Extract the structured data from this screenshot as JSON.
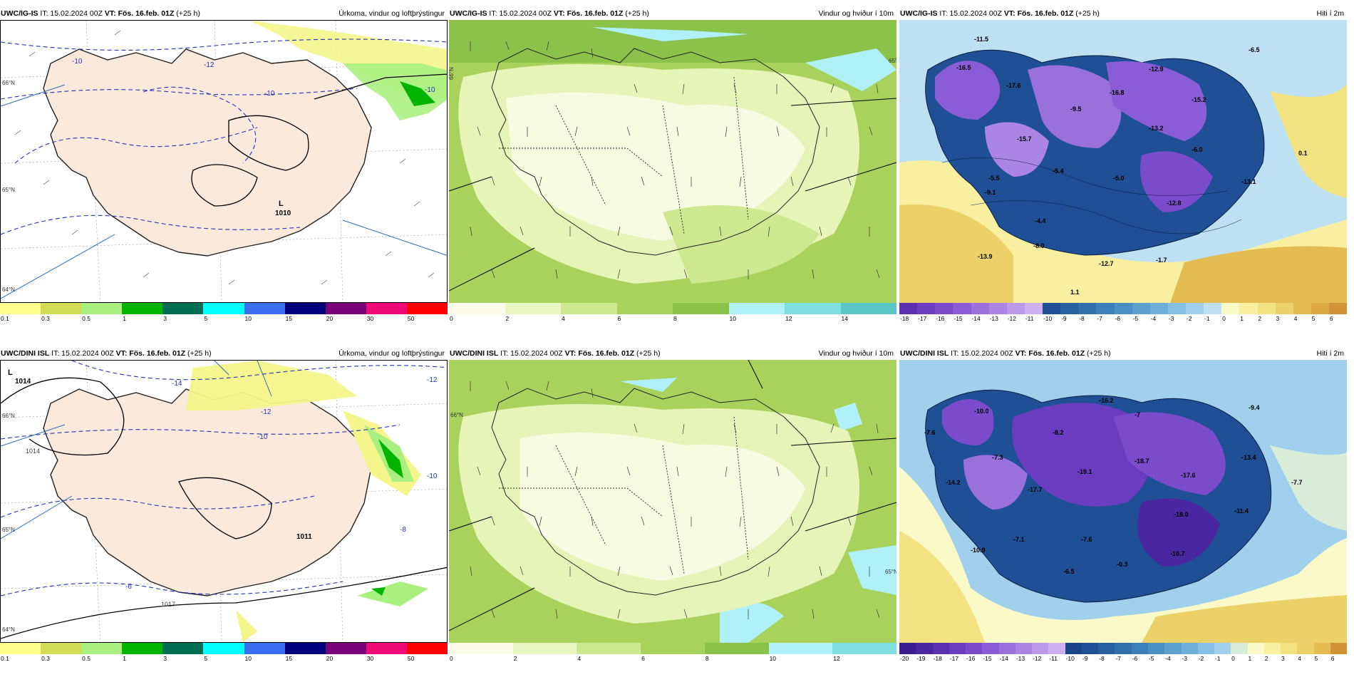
{
  "panels": [
    {
      "id": "top-precip",
      "model": "UWC/IG-IS",
      "it": "IT: 15.02.2024 00Z",
      "vt": "VT: Fös. 16.feb. 01Z",
      "lead": "(+25 h)",
      "product": "Úrkoma, vindur og loftþrýstingur",
      "ticks": [
        "0.1",
        "0.3",
        "0.5",
        "1",
        "3",
        "5",
        "10",
        "15",
        "20",
        "30",
        "50"
      ],
      "colors": [
        "#ffff8c",
        "#d2dd55",
        "#aaf080",
        "#00b400",
        "#006e50",
        "#00ffff",
        "#3c6ef0",
        "#00007d",
        "#780078",
        "#f00a78",
        "#ff0000"
      ],
      "labels": [
        {
          "text": "-10",
          "c": "#2633b5"
        },
        {
          "text": "-12",
          "c": "#2633b5"
        },
        {
          "text": "-10",
          "c": "#2633b5"
        },
        {
          "text": "-10",
          "c": "#2633b5"
        },
        {
          "text": "1010",
          "c": "#000"
        },
        {
          "text": "L",
          "c": "#000"
        }
      ],
      "lat_labels": [
        "66°N",
        "65°N",
        "64°N"
      ]
    },
    {
      "id": "top-wind",
      "model": "UWC/IG-IS",
      "it": "IT: 15.02.2024 00Z",
      "vt": "VT: Fös. 16.feb. 01Z",
      "lead": "(+25 h)",
      "product": "Vindur og hviður í 10m",
      "ticks": [
        "0",
        "2",
        "4",
        "6",
        "8",
        "10",
        "12",
        "14"
      ],
      "colors": [
        "#fbfde8",
        "#eaf6c2",
        "#cde990",
        "#a8d25c",
        "#8bc34a",
        "#b0f0f8",
        "#7fdee0",
        "#5cc7c7"
      ],
      "labels": [],
      "lat_labels": [
        "66°N",
        "65°N"
      ]
    },
    {
      "id": "top-temp",
      "model": "UWC/IG-IS",
      "it": "IT: 15.02.2024 00Z",
      "vt": "VT: Fös. 16.feb. 01Z",
      "lead": "(+25 h)",
      "product": "Hiti í 2m",
      "ticks": [
        "-18",
        "-17",
        "-16",
        "-15",
        "-14",
        "-13",
        "-12",
        "-11",
        "-10",
        "-9",
        "-8",
        "-7",
        "-6",
        "-5",
        "-4",
        "-3",
        "-2",
        "-1",
        "0",
        "1",
        "2",
        "3",
        "4",
        "5",
        "6"
      ],
      "colors": [
        "#5a2fb0",
        "#6a3cc0",
        "#7a4ccc",
        "#8a5cd6",
        "#9a70dd",
        "#ab85e4",
        "#bc9aea",
        "#cdb0f0",
        "#1f4f94",
        "#27609f",
        "#3070ab",
        "#3b80b8",
        "#4a90c4",
        "#5ca0cf",
        "#6fb0da",
        "#86c0e4",
        "#a0d0ec",
        "#bde0f2",
        "#fafac8",
        "#f8f0a0",
        "#f2e282",
        "#ecd068",
        "#e4bc52",
        "#dca842",
        "#d49236"
      ],
      "labels": [
        {
          "text": "-11.5"
        },
        {
          "text": "-16.5"
        },
        {
          "text": "-17.6"
        },
        {
          "text": "-12.9"
        },
        {
          "text": "-16.8"
        },
        {
          "text": "-15.2"
        },
        {
          "text": "-6.5"
        },
        {
          "text": "-15.7"
        },
        {
          "text": "-13.2"
        },
        {
          "text": "-6.0"
        },
        {
          "text": "-5.4"
        },
        {
          "text": "-5.0"
        },
        {
          "text": "-9.5"
        },
        {
          "text": "-12.8"
        },
        {
          "text": "-13.1"
        },
        {
          "text": "-4.4"
        },
        {
          "text": "-5.5"
        },
        {
          "text": "-8.0"
        },
        {
          "text": "-12.7"
        },
        {
          "text": "-1.7"
        },
        {
          "text": "1.1"
        },
        {
          "text": "0.1"
        },
        {
          "text": "-9.1"
        },
        {
          "text": "-13.9"
        }
      ]
    },
    {
      "id": "bottom-precip",
      "model": "UWC/DINI ISL",
      "it": "IT: 15.02.2024 00Z",
      "vt": "VT: Fös. 16.feb. 01Z",
      "lead": "(+25 h)",
      "product": "Úrkoma, vindur og loftþrýstingur",
      "ticks": [
        "0.1",
        "0.3",
        "0.5",
        "1",
        "3",
        "5",
        "10",
        "15",
        "20",
        "30",
        "50"
      ],
      "colors": [
        "#ffff8c",
        "#d2dd55",
        "#aaf080",
        "#00b400",
        "#006e50",
        "#00ffff",
        "#3c6ef0",
        "#00007d",
        "#780078",
        "#f00a78",
        "#ff0000"
      ],
      "labels": [
        {
          "text": "L",
          "c": "#000"
        },
        {
          "text": "1014",
          "c": "#000"
        },
        {
          "text": "-14",
          "c": "#2633b5"
        },
        {
          "text": "-12",
          "c": "#2633b5"
        },
        {
          "text": "-12",
          "c": "#2633b5"
        },
        {
          "text": "-10",
          "c": "#2633b5"
        },
        {
          "text": "-10",
          "c": "#2633b5"
        },
        {
          "text": "1014",
          "c": "#444"
        },
        {
          "text": "1011",
          "c": "#000"
        },
        {
          "text": "-8",
          "c": "#2633b5"
        },
        {
          "text": "-6",
          "c": "#2633b5"
        },
        {
          "text": "1017",
          "c": "#444"
        }
      ],
      "lat_labels": [
        "66°N",
        "65°N",
        "64°N"
      ]
    },
    {
      "id": "bottom-wind",
      "model": "UWC/DINI ISL",
      "it": "IT: 15.02.2024 00Z",
      "vt": "VT: Fös. 16.feb. 01Z",
      "lead": "(+25 h)",
      "product": "Vindur og hviður í 10m",
      "ticks": [
        "0",
        "2",
        "4",
        "6",
        "8",
        "10",
        "12"
      ],
      "colors": [
        "#fbfde8",
        "#eaf6c2",
        "#cde990",
        "#a8d25c",
        "#8bc34a",
        "#b0f0f8",
        "#7fdee0"
      ],
      "labels": [],
      "lat_labels": [
        "66°N",
        "65°N"
      ]
    },
    {
      "id": "bottom-temp",
      "model": "UWC/DINI ISL",
      "it": "IT: 15.02.2024 00Z",
      "vt": "VT: Fös. 16.feb. 01Z",
      "lead": "(+25 h)",
      "product": "Hiti í 2m",
      "ticks": [
        "-20",
        "-19",
        "-18",
        "-17",
        "-16",
        "-15",
        "-14",
        "-13",
        "-12",
        "-11",
        "-10",
        "-9",
        "-8",
        "-7",
        "-6",
        "-5",
        "-4",
        "-3",
        "-2",
        "-1",
        "0",
        "1",
        "2",
        "3",
        "4",
        "5",
        "6"
      ],
      "colors": [
        "#3a1d8c",
        "#4a26a0",
        "#5a2fb0",
        "#6a3cc0",
        "#7a4ccc",
        "#8a5cd6",
        "#9a70dd",
        "#ab85e4",
        "#bc9aea",
        "#cdb0f0",
        "#1a4488",
        "#1f4f94",
        "#27609f",
        "#3070ab",
        "#3b80b8",
        "#4a90c4",
        "#5ca0cf",
        "#6fb0da",
        "#86c0e4",
        "#a0d0ec",
        "#d8ecd8",
        "#fafac8",
        "#f8f0a0",
        "#f2e282",
        "#ecd068",
        "#e4bc52",
        "#d49236"
      ],
      "labels": [
        {
          "text": "-10.0"
        },
        {
          "text": "-16.2"
        },
        {
          "text": "-9.4"
        },
        {
          "text": "-7"
        },
        {
          "text": "-7.6"
        },
        {
          "text": "-8.2"
        },
        {
          "text": "-7.3"
        },
        {
          "text": "-19.1"
        },
        {
          "text": "-18.7"
        },
        {
          "text": "-17.6"
        },
        {
          "text": "-13.4"
        },
        {
          "text": "-14.2"
        },
        {
          "text": "-17.7"
        },
        {
          "text": "-7.7"
        },
        {
          "text": "-18.0"
        },
        {
          "text": "-11.4"
        },
        {
          "text": "-7.1"
        },
        {
          "text": "-7.6"
        },
        {
          "text": "-10.9"
        },
        {
          "text": "-10.7"
        },
        {
          "text": "-0.3"
        },
        {
          "text": "-6.5"
        }
      ]
    }
  ]
}
